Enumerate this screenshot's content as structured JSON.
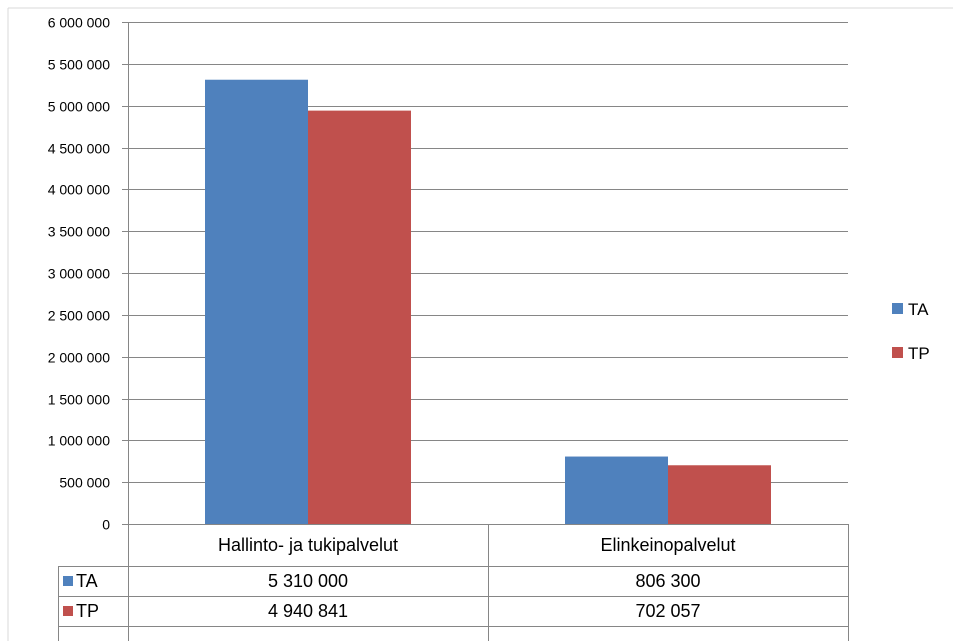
{
  "chart_data": {
    "type": "bar",
    "categories": [
      "Hallinto- ja tukipalvelut",
      "Elinkeinopalvelut"
    ],
    "series": [
      {
        "name": "TA",
        "values": [
          5310000,
          806300
        ],
        "labels": [
          "5 310 000",
          "806 300"
        ],
        "color": "#4f81bd"
      },
      {
        "name": "TP",
        "values": [
          4940841,
          702057
        ],
        "labels": [
          "4 940 841",
          "702 057"
        ],
        "color": "#c0504d"
      }
    ],
    "ylim": [
      0,
      6000000
    ],
    "yticks": [
      0,
      500000,
      1000000,
      1500000,
      2000000,
      2500000,
      3000000,
      3500000,
      4000000,
      4500000,
      5000000,
      5500000,
      6000000
    ],
    "ytick_labels": [
      "0",
      "500 000",
      "1 000 000",
      "1 500 000",
      "2 000 000",
      "2 500 000",
      "3 000 000",
      "3 500 000",
      "4 000 000",
      "4 500 000",
      "5 000 000",
      "5 500 000",
      "6 000 000"
    ],
    "grid": true,
    "legend": "right",
    "data_table": true,
    "title": "",
    "xlabel": "",
    "ylabel": ""
  },
  "colors": {
    "gridline": "#868686",
    "axis": "#868686",
    "border": "#d9d9d9"
  }
}
